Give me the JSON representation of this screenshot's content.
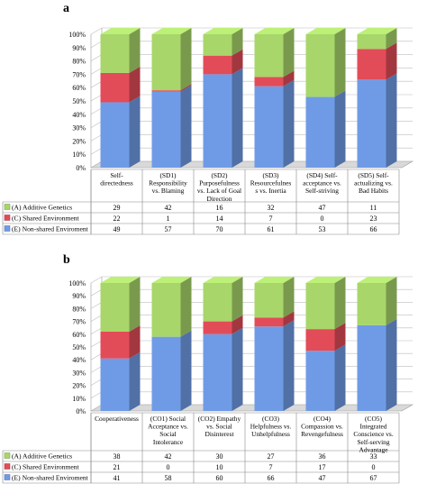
{
  "panels": [
    {
      "label": "a",
      "chart_data": {
        "type": "bar",
        "stacked": true,
        "ylim": [
          0,
          100
        ],
        "yticks": [
          "0%",
          "10%",
          "20%",
          "30%",
          "40%",
          "50%",
          "60%",
          "70%",
          "80%",
          "90%",
          "100%"
        ],
        "categories": [
          [
            "Self-",
            "directedness"
          ],
          [
            "(SD1)",
            "Responsibility",
            "vs. Blaming"
          ],
          [
            "(SD2)",
            "Purposefulness",
            "vs. Lack of Goal",
            "Direction"
          ],
          [
            "(SD3)",
            "Resourcefulnes",
            "s vs. Inertia"
          ],
          [
            "(SD4) Self-",
            "acceptance vs.",
            "Self-striving"
          ],
          [
            "(SD5) Self-",
            "actualizing vs.",
            "Bad Habits"
          ]
        ],
        "series": [
          {
            "name": "(E) Non-shared Enviroment",
            "color": "#6f9be6",
            "values": [
              49,
              57,
              70,
              61,
              53,
              66
            ]
          },
          {
            "name": "(C) Shared Environment",
            "color": "#e24c58",
            "values": [
              22,
              1,
              14,
              7,
              0,
              23
            ]
          },
          {
            "name": "(A) Additive Genetics",
            "color": "#a8d66a",
            "values": [
              29,
              42,
              16,
              32,
              47,
              11
            ]
          }
        ]
      }
    },
    {
      "label": "b",
      "chart_data": {
        "type": "bar",
        "stacked": true,
        "ylim": [
          0,
          100
        ],
        "yticks": [
          "0%",
          "10%",
          "20%",
          "30%",
          "40%",
          "50%",
          "60%",
          "70%",
          "80%",
          "90%",
          "100%"
        ],
        "categories": [
          [
            "Cooperativeness"
          ],
          [
            "(CO1) Social",
            "Acceptance vs.",
            "Social",
            "Intolerance"
          ],
          [
            "(CO2) Empathy",
            "vs. Social",
            "Disinterest"
          ],
          [
            "(CO3)",
            "Helpfulness vs.",
            "Unhelpfulness"
          ],
          [
            "(CO4)",
            "Compassion vs.",
            "Revengefulness"
          ],
          [
            "(CO5)",
            "Integrated",
            "Conscience vs.",
            "Self-serving",
            "Advantage"
          ]
        ],
        "series": [
          {
            "name": "(E) Non-shared Enviroment",
            "color": "#6f9be6",
            "values": [
              41,
              58,
              60,
              66,
              47,
              67
            ]
          },
          {
            "name": "(C) Shared Environment",
            "color": "#e24c58",
            "values": [
              21,
              0,
              10,
              7,
              17,
              0
            ]
          },
          {
            "name": "(A) Additive Genetics",
            "color": "#a8d66a",
            "values": [
              38,
              42,
              30,
              27,
              36,
              33
            ]
          }
        ]
      }
    }
  ]
}
